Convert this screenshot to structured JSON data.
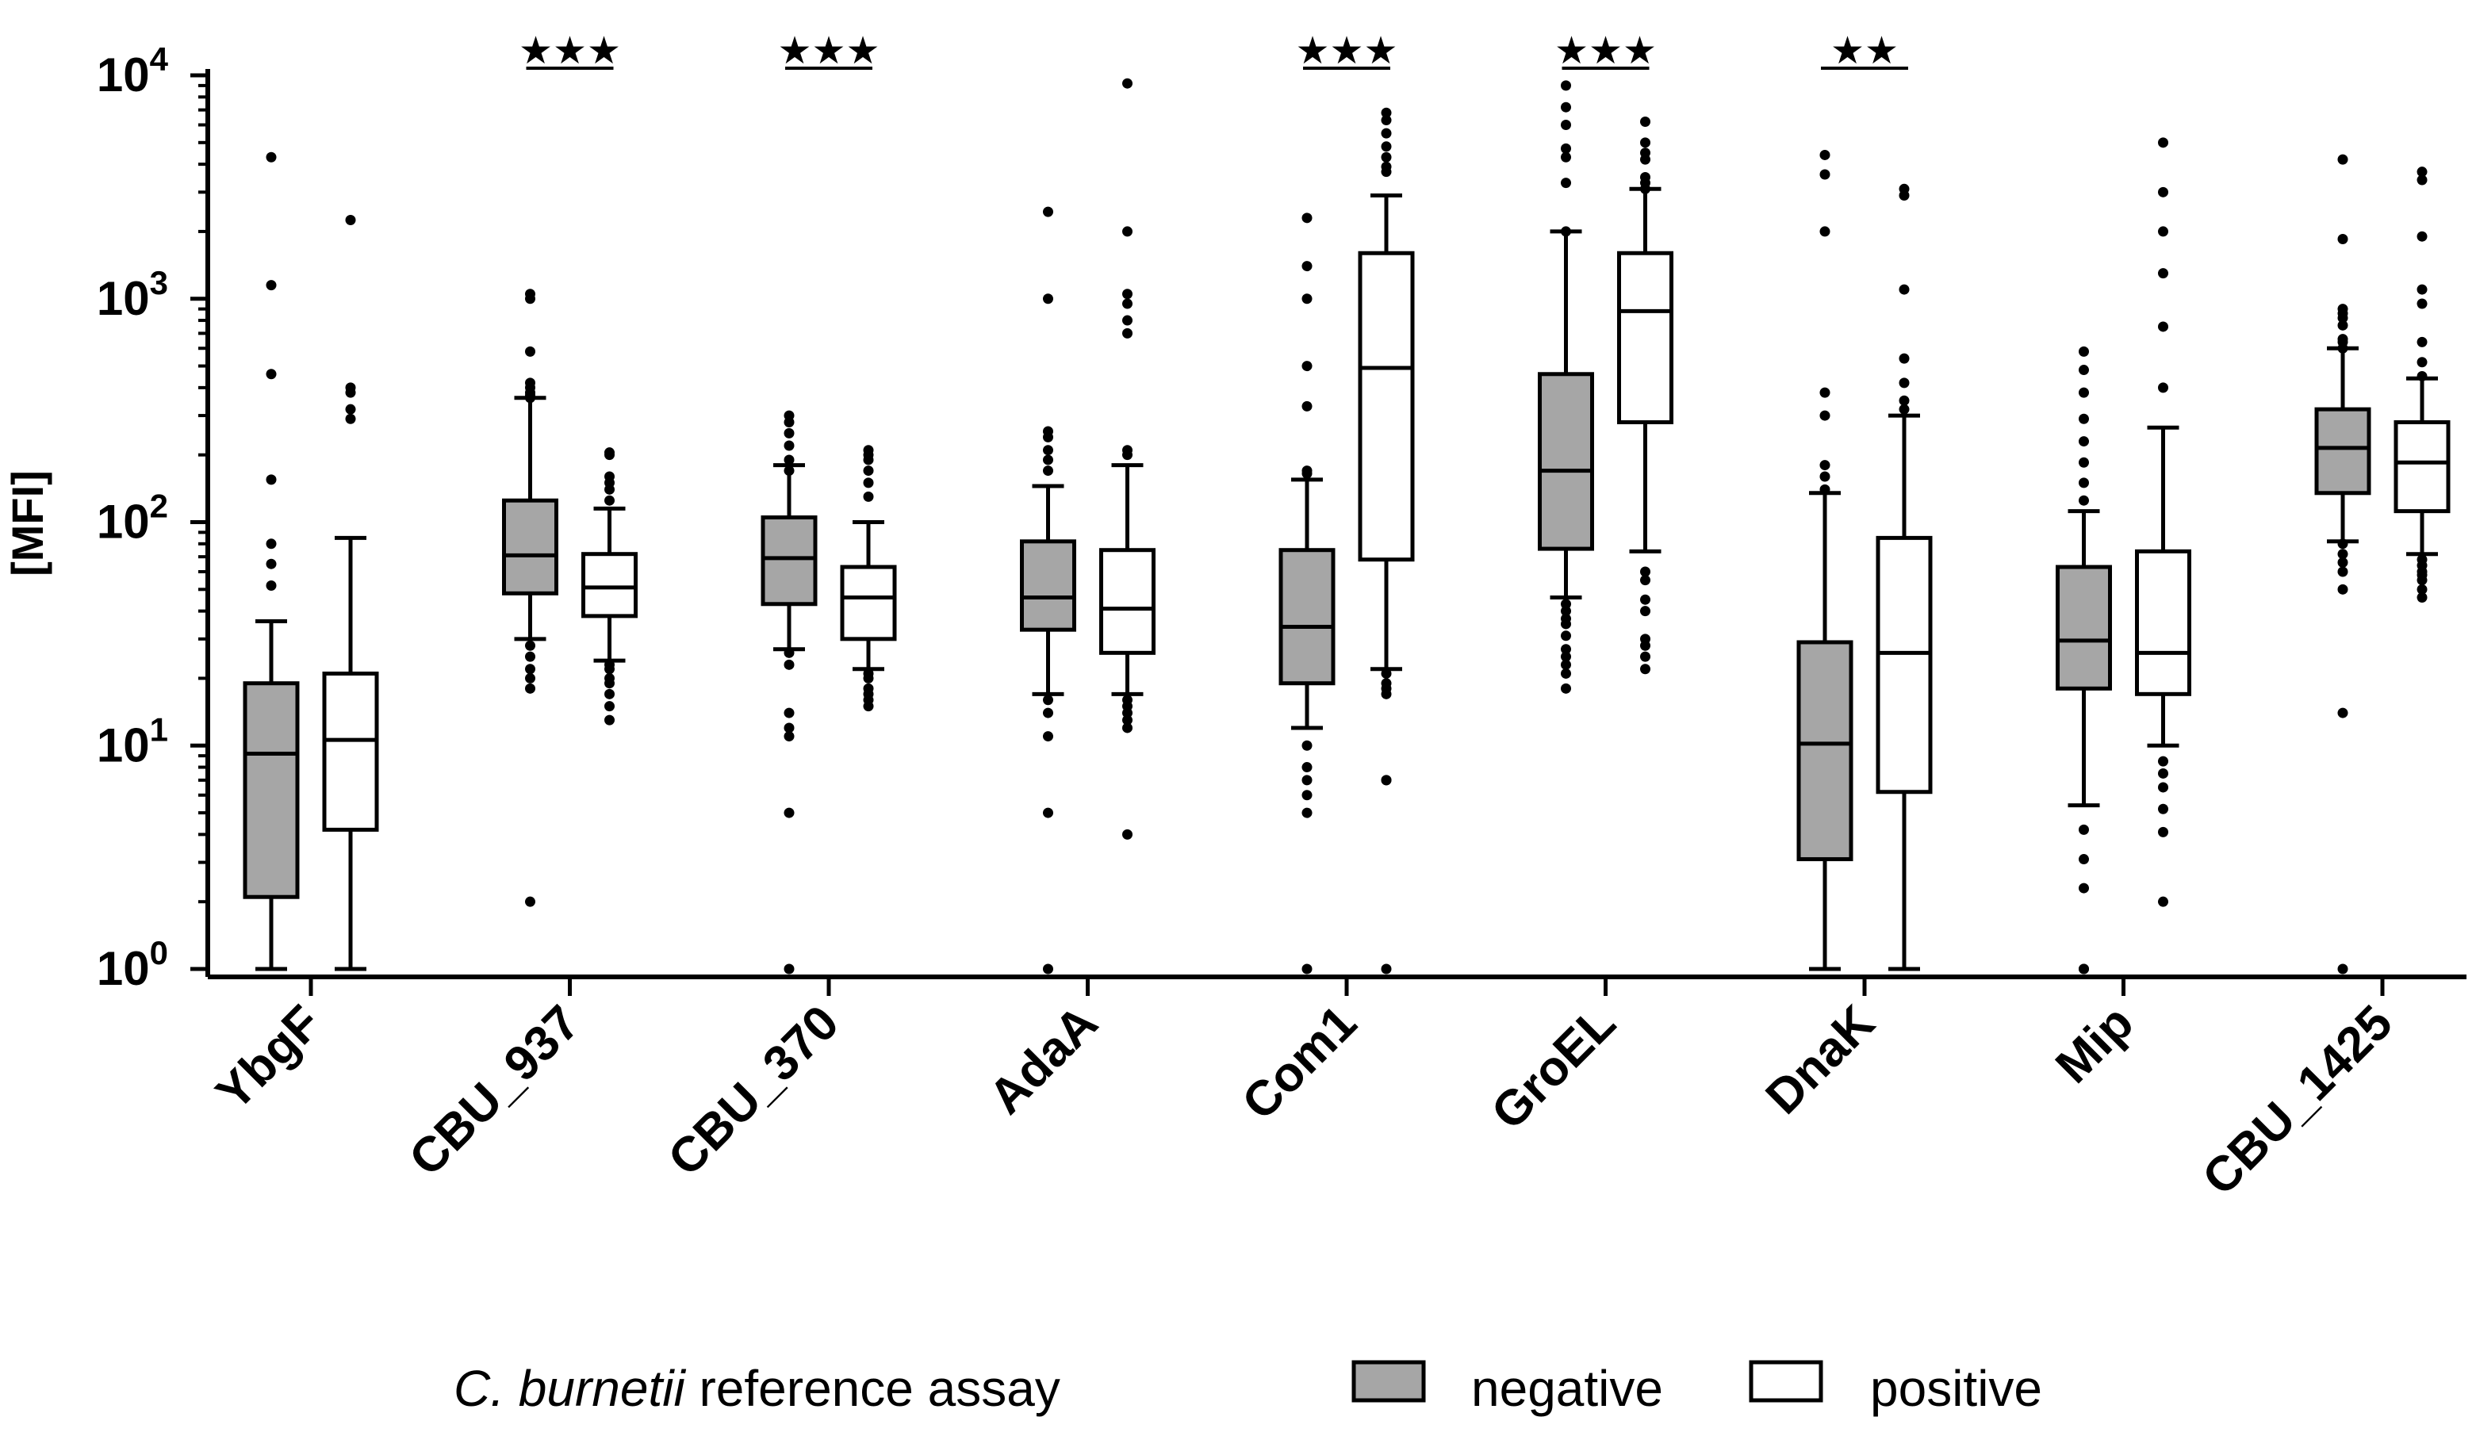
{
  "chart_data": {
    "type": "box",
    "ylabel": "[MFI]",
    "yscale": "log",
    "ylim": [
      1,
      10000
    ],
    "y_ticks": [
      {
        "value": 1,
        "base": "10",
        "exp": "0"
      },
      {
        "value": 10,
        "base": "10",
        "exp": "1"
      },
      {
        "value": 100,
        "base": "10",
        "exp": "2"
      },
      {
        "value": 1000,
        "base": "10",
        "exp": "3"
      },
      {
        "value": 10000,
        "base": "10",
        "exp": "4"
      }
    ],
    "categories": [
      "YbgF",
      "CBU_937",
      "CBU_370",
      "AdaA",
      "Com1",
      "GroEL",
      "DnaK",
      "Mip",
      "CBU_1425"
    ],
    "legend": {
      "title_italic": "C. burnetii",
      "title_rest": " reference assay",
      "position": "bottom"
    },
    "series": [
      {
        "name": "negative",
        "color": "#a6a6a6",
        "boxes": [
          {
            "whisker_low": 1,
            "q1": 2.1,
            "median": 9.2,
            "q3": 19,
            "whisker_high": 36,
            "outliers": [
              4300,
              1150,
              460,
              155,
              80,
              65,
              52
            ]
          },
          {
            "whisker_low": 30,
            "q1": 48,
            "median": 71,
            "q3": 125,
            "whisker_high": 360,
            "outliers": [
              1050,
              1000,
              580,
              420,
              400,
              380,
              370,
              360,
              28,
              25,
              22,
              20,
              18,
              2
            ]
          },
          {
            "whisker_low": 27,
            "q1": 43,
            "median": 69,
            "q3": 105,
            "whisker_high": 180,
            "outliers": [
              300,
              280,
              250,
              220,
              190,
              170,
              26,
              23,
              14,
              12,
              11,
              5,
              1
            ]
          },
          {
            "whisker_low": 17,
            "q1": 33,
            "median": 46,
            "q3": 82,
            "whisker_high": 145,
            "outliers": [
              2450,
              1000,
              255,
              240,
              210,
              190,
              170,
              16,
              14,
              11,
              5,
              1
            ]
          },
          {
            "whisker_low": 12,
            "q1": 19,
            "median": 34,
            "q3": 75,
            "whisker_high": 155,
            "outliers": [
              2300,
              1400,
              1000,
              500,
              330,
              170,
              165,
              10,
              8,
              7,
              6,
              5,
              1
            ]
          },
          {
            "whisker_low": 46,
            "q1": 76,
            "median": 170,
            "q3": 460,
            "whisker_high": 2000,
            "outliers": [
              9000,
              7200,
              6000,
              4700,
              4300,
              3300,
              2000,
              43,
              40,
              37,
              35,
              31,
              27,
              25,
              23,
              21,
              18
            ]
          },
          {
            "whisker_low": 1,
            "q1": 3.1,
            "median": 10.2,
            "q3": 29,
            "whisker_high": 135,
            "outliers": [
              4400,
              3600,
              2000,
              380,
              300,
              180,
              160,
              140
            ]
          },
          {
            "whisker_low": 5.4,
            "q1": 18,
            "median": 29.5,
            "q3": 63,
            "whisker_high": 112,
            "outliers": [
              580,
              480,
              380,
              290,
              230,
              185,
              150,
              125,
              4.2,
              3.1,
              2.3,
              1,
              1
            ]
          },
          {
            "whisker_low": 82,
            "q1": 135,
            "median": 215,
            "q3": 320,
            "whisker_high": 600,
            "outliers": [
              4200,
              1850,
              900,
              860,
              820,
              760,
              660,
              640,
              600,
              80,
              72,
              66,
              60,
              50,
              14,
              1
            ]
          }
        ]
      },
      {
        "name": "positive",
        "color": "#ffffff",
        "boxes": [
          {
            "whisker_low": 1,
            "q1": 4.2,
            "median": 10.6,
            "q3": 21,
            "whisker_high": 85,
            "outliers": [
              2250,
              400,
              380,
              320,
              290
            ]
          },
          {
            "whisker_low": 24,
            "q1": 38,
            "median": 51,
            "q3": 72,
            "whisker_high": 115,
            "outliers": [
              205,
              200,
              160,
              150,
              140,
              125,
              23,
              22,
              20,
              19,
              17,
              15,
              13
            ]
          },
          {
            "whisker_low": 22,
            "q1": 30,
            "median": 46,
            "q3": 63,
            "whisker_high": 100,
            "outliers": [
              210,
              200,
              190,
              170,
              150,
              130,
              21,
              20,
              18,
              17,
              16,
              15
            ]
          },
          {
            "whisker_low": 17,
            "q1": 26,
            "median": 41,
            "q3": 75,
            "whisker_high": 180,
            "outliers": [
              9200,
              2000,
              1050,
              950,
              800,
              700,
              210,
              200,
              16,
              15,
              14,
              13,
              12,
              4
            ]
          },
          {
            "whisker_low": 22,
            "q1": 68,
            "median": 490,
            "q3": 1600,
            "whisker_high": 2900,
            "outliers": [
              6800,
              6300,
              5500,
              4800,
              4300,
              3900,
              3700,
              21,
              19,
              18,
              17,
              7,
              7,
              1
            ]
          },
          {
            "whisker_low": 74,
            "q1": 280,
            "median": 880,
            "q3": 1600,
            "whisker_high": 3100,
            "outliers": [
              6200,
              5000,
              4500,
              4200,
              3500,
              3300,
              3100,
              60,
              55,
              45,
              40,
              30,
              28,
              25,
              22
            ]
          },
          {
            "whisker_low": 1,
            "q1": 6.2,
            "median": 26,
            "q3": 85,
            "whisker_high": 300,
            "outliers": [
              3100,
              2900,
              1100,
              540,
              420,
              350,
              320
            ]
          },
          {
            "whisker_low": 10,
            "q1": 17,
            "median": 26,
            "q3": 74,
            "whisker_high": 265,
            "outliers": [
              5000,
              3000,
              2000,
              1300,
              750,
              400,
              8.5,
              7.5,
              6.5,
              5.2,
              4.1,
              2
            ]
          },
          {
            "whisker_low": 72,
            "q1": 112,
            "median": 185,
            "q3": 280,
            "whisker_high": 440,
            "outliers": [
              3700,
              3400,
              1900,
              1100,
              950,
              640,
              520,
              450,
              68,
              64,
              60,
              58,
              55,
              50,
              46
            ]
          }
        ]
      }
    ],
    "significance": [
      {
        "category_index": 1,
        "label": "★★★"
      },
      {
        "category_index": 2,
        "label": "★★★"
      },
      {
        "category_index": 4,
        "label": "★★★"
      },
      {
        "category_index": 5,
        "label": "★★★"
      },
      {
        "category_index": 6,
        "label": "★★"
      }
    ]
  }
}
